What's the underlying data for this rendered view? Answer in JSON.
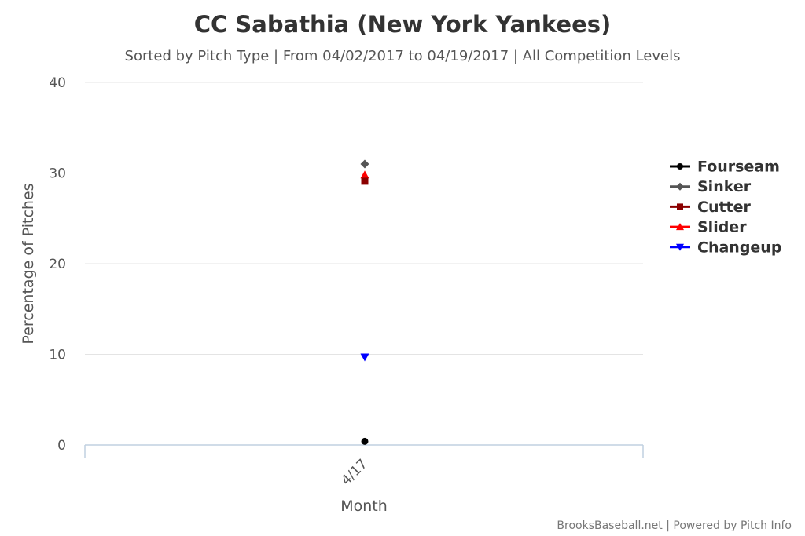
{
  "chart_data": {
    "type": "scatter",
    "title": "CC Sabathia (New York Yankees)",
    "subtitle": "Sorted by Pitch Type | From 04/02/2017 to 04/19/2017 | All Competition Levels",
    "xlabel": "Month",
    "ylabel": "Percentage of Pitches",
    "categories": [
      "4/17"
    ],
    "ylim": [
      0,
      40
    ],
    "yticks": [
      0,
      10,
      20,
      30,
      40
    ],
    "grid": true,
    "legend_position": "right",
    "series": [
      {
        "name": "Fourseam",
        "values": [
          0.4
        ],
        "color": "#000000",
        "marker": "circle"
      },
      {
        "name": "Sinker",
        "values": [
          31.0
        ],
        "color": "#555555",
        "marker": "diamond"
      },
      {
        "name": "Cutter",
        "values": [
          29.1
        ],
        "color": "#8b0000",
        "marker": "square"
      },
      {
        "name": "Slider",
        "values": [
          29.8
        ],
        "color": "#ff0000",
        "marker": "triangle"
      },
      {
        "name": "Changeup",
        "values": [
          9.7
        ],
        "color": "#0000ff",
        "marker": "triangle-down"
      }
    ],
    "credits": "BrooksBaseball.net | Powered by Pitch Info"
  }
}
